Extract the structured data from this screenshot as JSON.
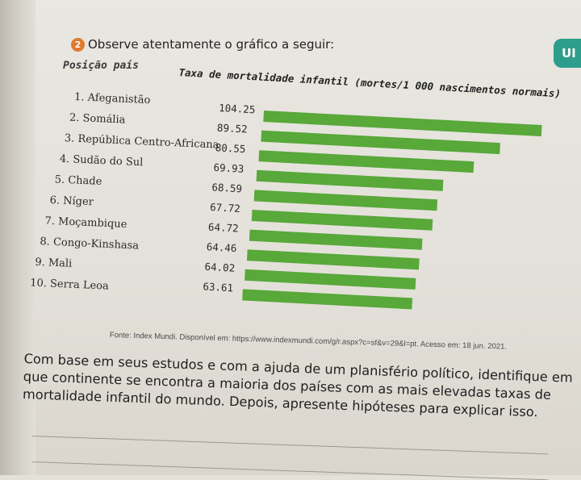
{
  "side_tab": {
    "label": "UI"
  },
  "question": {
    "number": "2",
    "text": "Observe atentamente o gráfico a seguir:"
  },
  "column_header": "Posição país",
  "chart_data": {
    "type": "bar",
    "orientation": "horizontal",
    "title": "Taxa de mortalidade infantil (mortes/1 000 nascimentos normais)",
    "categories": [
      "1. Afeganistão",
      "2. Somália",
      "3. República Centro-Africana",
      "4. Sudão do Sul",
      "5. Chade",
      "6. Níger",
      "7. Moçambique",
      "8. Congo-Kinshasa",
      "9. Mali",
      "10. Serra Leoa"
    ],
    "value_labels": [
      "104.25",
      "89.52",
      "80.55",
      "69.93",
      "68.59",
      "67.72",
      "64.72",
      "64.46",
      "64.02",
      "63.61"
    ],
    "values": [
      104.25,
      89.52,
      80.55,
      69.93,
      68.59,
      67.72,
      64.72,
      64.46,
      64.02,
      63.61
    ],
    "bar_color": "#58a83a",
    "xlabel": "",
    "ylabel": "Posição país"
  },
  "source_text": "Fonte: Index Mundi. Disponível em: https://www.indexmundi.com/g/r.aspx?c=sf&v=29&l=pt. Acesso em: 18 jun. 2021.",
  "body_lines": [
    "Com base em seus estudos e com a ajuda de um planisfério político, identifique em",
    "que continente se encontra a maioria dos países com as mais elevadas taxas de",
    "mortalidade infantil do mundo. Depois, apresente hipóteses para explicar isso."
  ]
}
